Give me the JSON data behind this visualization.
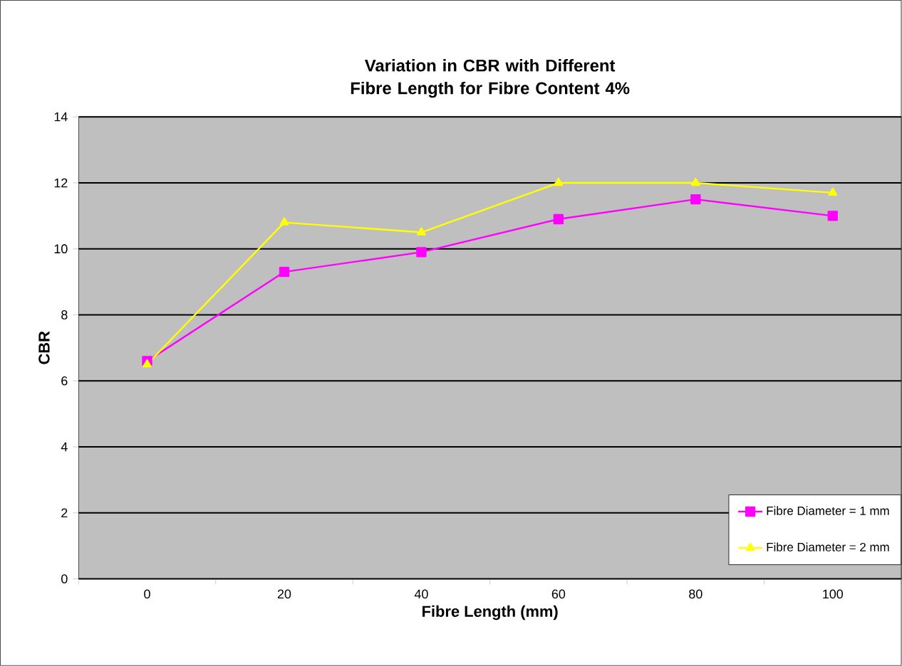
{
  "chart_data": {
    "type": "line",
    "title": "Variation in CBR with Different Fibre Length for Fibre Content 4%",
    "xlabel": "Fibre Length (mm)",
    "ylabel": "CBR",
    "categories": [
      "0",
      "20",
      "40",
      "60",
      "80",
      "100"
    ],
    "series": [
      {
        "name": "Fibre Diameter = 1 mm",
        "color": "#ff00ff",
        "marker": "square",
        "values": [
          6.6,
          9.3,
          9.9,
          10.9,
          11.5,
          11.0
        ]
      },
      {
        "name": "Fibre Diameter = 2 mm",
        "color": "#ffff00",
        "marker": "triangle",
        "values": [
          6.5,
          10.8,
          10.5,
          12.0,
          12.0,
          11.7
        ]
      }
    ],
    "ylim": [
      0,
      14
    ],
    "yticks": [
      0,
      2,
      4,
      6,
      8,
      10,
      12,
      14
    ],
    "grid": "y",
    "legend": "bottom right",
    "line_style": "solid"
  }
}
